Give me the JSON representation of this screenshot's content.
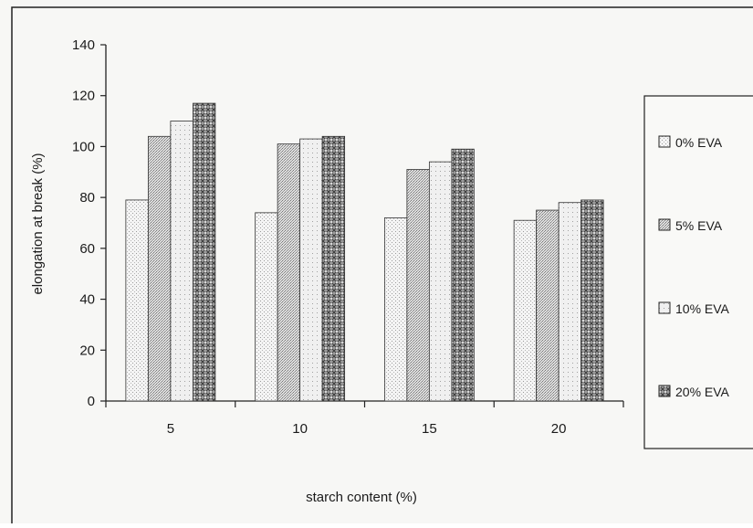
{
  "chart_data": {
    "type": "bar",
    "title": "",
    "xlabel": "starch content (%)",
    "ylabel": "elongation at break (%)",
    "categories": [
      "5",
      "10",
      "15",
      "20"
    ],
    "ylim": [
      0,
      140
    ],
    "yticks": [
      0,
      20,
      40,
      60,
      80,
      100,
      120,
      140
    ],
    "grid": false,
    "legend_position": "right",
    "series": [
      {
        "name": "0% EVA",
        "values": [
          79,
          74,
          72,
          71
        ],
        "pattern": "dots-light"
      },
      {
        "name": "5% EVA",
        "values": [
          104,
          101,
          91,
          75
        ],
        "pattern": "dots-medium"
      },
      {
        "name": "10% EVA",
        "values": [
          110,
          103,
          94,
          78
        ],
        "pattern": "dots-sparse"
      },
      {
        "name": "20% EVA",
        "values": [
          117,
          104,
          99,
          79
        ],
        "pattern": "crosshatch"
      }
    ]
  }
}
